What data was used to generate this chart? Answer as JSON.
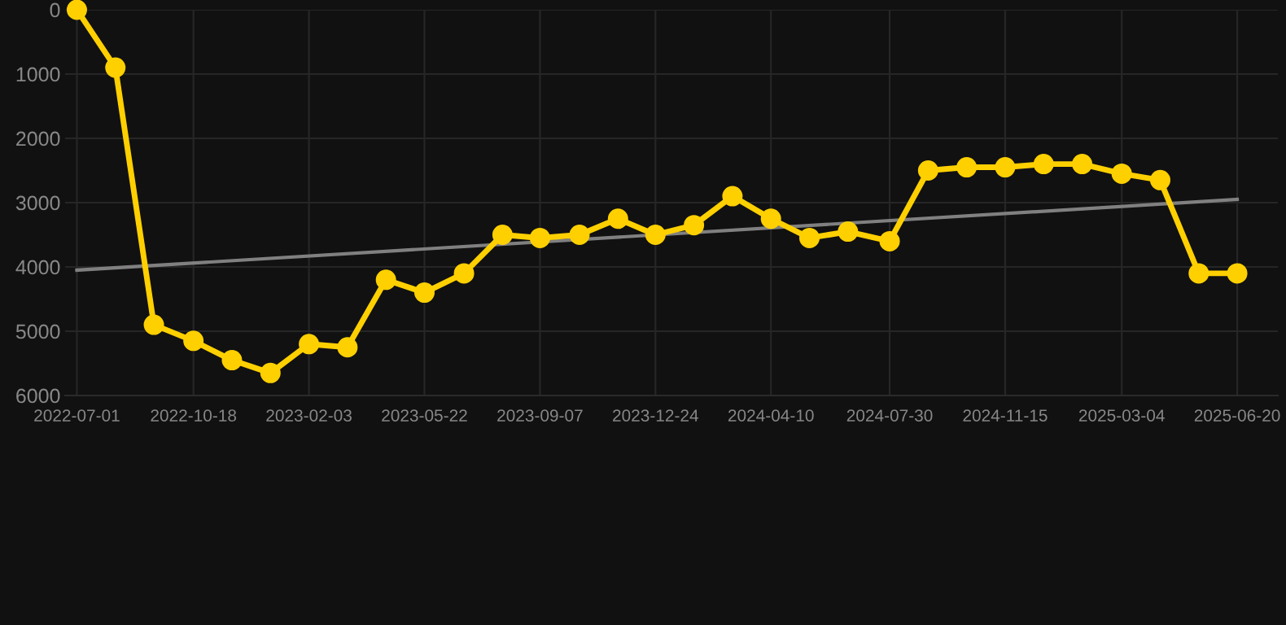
{
  "chart_data": {
    "type": "line",
    "ylim": [
      6000,
      0
    ],
    "yticks": [
      0,
      1000,
      2000,
      3000,
      4000,
      5000,
      6000
    ],
    "xlim": [
      "2022-06-20",
      "2025-07-28"
    ],
    "xticks": [
      "2022-07-01",
      "2022-10-18",
      "2023-02-03",
      "2023-05-22",
      "2023-09-07",
      "2023-12-24",
      "2024-04-10",
      "2024-07-30",
      "2024-11-15",
      "2025-03-04",
      "2025-06-20"
    ],
    "grid": true,
    "line_style": "solid",
    "series": [
      {
        "color": "#ffd000",
        "marker": "circle",
        "x": [
          "2022-07-01",
          "2022-08-06",
          "2022-09-11",
          "2022-10-18",
          "2022-11-23",
          "2022-12-29",
          "2023-02-03",
          "2023-03-11",
          "2023-04-16",
          "2023-05-22",
          "2023-06-28",
          "2023-08-03",
          "2023-09-07",
          "2023-10-14",
          "2023-11-19",
          "2023-12-24",
          "2024-01-29",
          "2024-03-05",
          "2024-04-10",
          "2024-05-16",
          "2024-06-21",
          "2024-07-30",
          "2024-09-04",
          "2024-10-10",
          "2024-11-15",
          "2024-12-21",
          "2025-01-26",
          "2025-03-04",
          "2025-04-09",
          "2025-05-15",
          "2025-06-20"
        ],
        "values": [
          0,
          900,
          4900,
          5150,
          5450,
          5650,
          5200,
          5250,
          4200,
          4400,
          4100,
          3500,
          3550,
          3500,
          3250,
          3500,
          3350,
          2900,
          3250,
          3550,
          3450,
          3600,
          2500,
          2450,
          2450,
          2400,
          2400,
          2550,
          2650,
          4100,
          4100
        ]
      },
      {
        "color": "#808080",
        "marker": "none",
        "x": [
          "2022-07-01",
          "2025-06-20"
        ],
        "values": [
          4050,
          2950
        ]
      }
    ]
  }
}
